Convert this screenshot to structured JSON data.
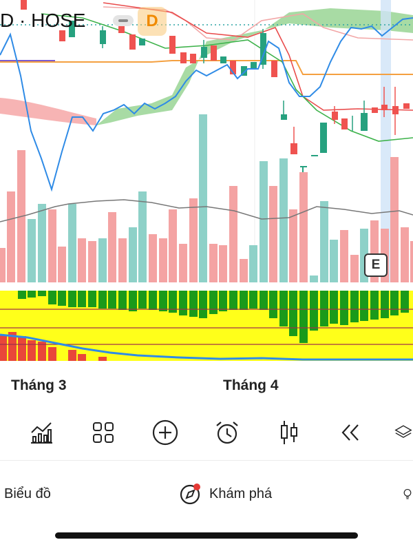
{
  "header": {
    "ticker": "D · HOSE",
    "timeframe": "D"
  },
  "event_badge": "E",
  "months": [
    "Tháng 3",
    "Tháng 4"
  ],
  "toolbar": {
    "icons": [
      "indicators-icon",
      "layout-grid-icon",
      "add-icon",
      "alarm-icon",
      "candlestick-icon",
      "rewind-icon",
      "layers-icon"
    ]
  },
  "bottom_nav": {
    "chart_label": "Biểu đồ",
    "explore_label": "Khám phá"
  },
  "colors": {
    "up": "#26a17f",
    "down": "#ef5350",
    "vol_up": "#8ed1c8",
    "vol_down": "#f4a3a3",
    "line_blue": "#2f8be6",
    "orange": "#f4a040",
    "cloud_green": "#9ed79a",
    "cloud_red": "#f6a7a7"
  }
}
